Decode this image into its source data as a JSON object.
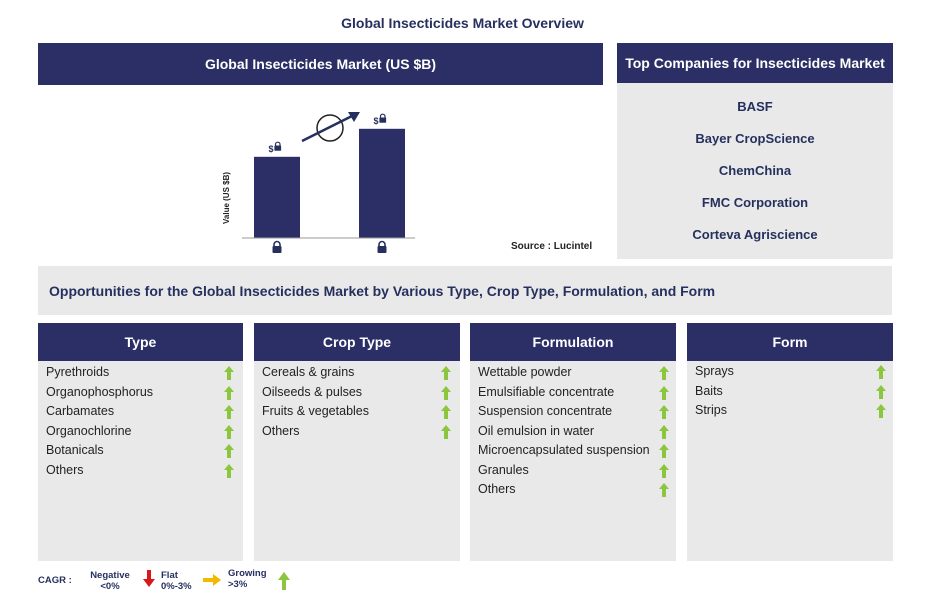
{
  "title": "Global Insecticides Market Overview",
  "chart_header": "Global Insecticides Market (US $B)",
  "chart_data": {
    "type": "bar",
    "categories": [
      "",
      ""
    ],
    "values": [
      0.58,
      0.78
    ],
    "ylabel": "Value (US $B)",
    "value_labels": [
      "$",
      "$"
    ],
    "colors": {
      "bar": "#2b2f66",
      "arrow": "#26305e"
    }
  },
  "source": "Source : Lucintel",
  "companies": {
    "header": "Top Companies for Insecticides Market",
    "items": [
      "BASF",
      "Bayer CropScience",
      "ChemChina",
      "FMC Corporation",
      "Corteva Agriscience"
    ]
  },
  "opportunities_title": "Opportunities for the Global Insecticides Market by Various Type, Crop Type, Formulation, and Form",
  "segments": [
    {
      "header": "Type",
      "items": [
        "Pyrethroids",
        "Organophosphorus",
        "Carbamates",
        "Organochlorine",
        "Botanicals",
        "Others"
      ]
    },
    {
      "header": "Crop Type",
      "items": [
        "Cereals & grains",
        "Oilseeds & pulses",
        "Fruits & vegetables",
        "Others"
      ]
    },
    {
      "header": "Formulation",
      "items": [
        "Wettable powder",
        "Emulsifiable concentrate",
        "Suspension concentrate",
        "Oil emulsion in water",
        "Microencapsulated suspension",
        "Granules",
        "Others"
      ]
    },
    {
      "header": "Form",
      "items": [
        "Sprays",
        "Baits",
        "Strips"
      ]
    }
  ],
  "legend": {
    "cagr": "CAGR :",
    "negative": "Negative",
    "negative_range": "<0%",
    "flat": "Flat",
    "flat_range": "0%-3%",
    "growing": "Growing",
    "growing_range": ">3%",
    "colors": {
      "negative": "#d7191c",
      "flat": "#f5b800",
      "growing": "#8cc63f"
    }
  },
  "icons": {
    "lock": "lock-icon",
    "growth": "up-arrow-icon"
  }
}
